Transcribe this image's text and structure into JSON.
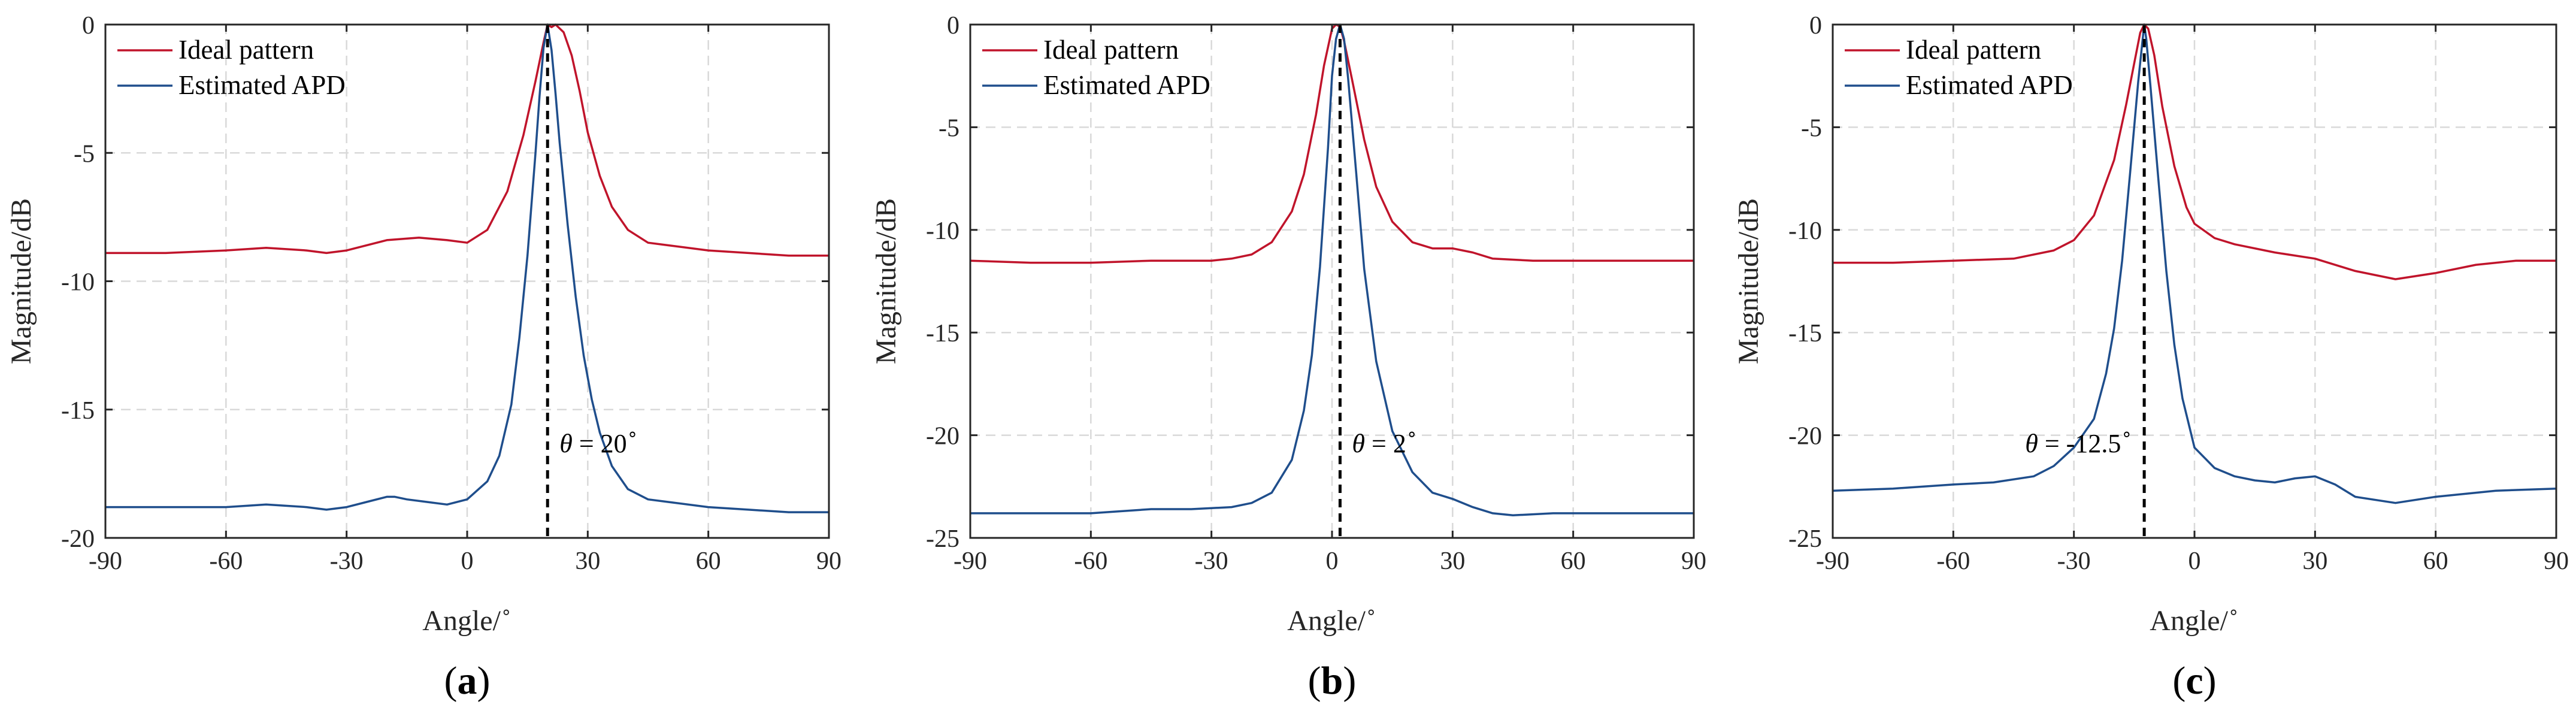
{
  "panels": [
    {
      "panel_label": "(a)",
      "annotation_text": "θ = 20",
      "annotation_sup": "∘"
    },
    {
      "panel_label": "(b)",
      "annotation_text": "θ = 2",
      "annotation_sup": "∘"
    },
    {
      "panel_label": "(c)",
      "annotation_text": "θ = -12.5",
      "annotation_sup": "∘"
    }
  ],
  "colors": {
    "ideal": "#c0142b",
    "estimated": "#1f4e8c"
  },
  "chart_data": [
    {
      "type": "line",
      "title": "",
      "xlabel": "Angle/",
      "xlabel_sup": "∘",
      "ylabel": "Magnitude/dB",
      "xlim": [
        -90,
        90
      ],
      "ylim": [
        -20,
        0
      ],
      "xticks": [
        -90,
        -60,
        -30,
        0,
        30,
        60,
        90
      ],
      "yticks": [
        0,
        -5,
        -10,
        -15,
        -20
      ],
      "grid": true,
      "legend_position": "top-left",
      "marker_x": 20,
      "series": [
        {
          "name": "Ideal pattern",
          "color_key": "ideal",
          "x": [
            -90,
            -75,
            -60,
            -50,
            -40,
            -35,
            -30,
            -20,
            -12,
            -5,
            0,
            5,
            10,
            14,
            17,
            19,
            20,
            21,
            22,
            24,
            26,
            28,
            30,
            33,
            36,
            40,
            45,
            50,
            60,
            70,
            80,
            90
          ],
          "y": [
            -8.9,
            -8.9,
            -8.8,
            -8.7,
            -8.8,
            -8.9,
            -8.8,
            -8.4,
            -8.3,
            -8.4,
            -8.5,
            -8.0,
            -6.5,
            -4.3,
            -2.2,
            -0.7,
            0,
            -0.1,
            0,
            -0.3,
            -1.2,
            -2.6,
            -4.2,
            -5.9,
            -7.1,
            -8.0,
            -8.5,
            -8.6,
            -8.8,
            -8.9,
            -9.0,
            -9.0
          ]
        },
        {
          "name": "Estimated APD",
          "color_key": "estimated",
          "x": [
            -90,
            -75,
            -60,
            -50,
            -40,
            -35,
            -30,
            -25,
            -20,
            -18,
            -15,
            -10,
            -5,
            0,
            5,
            8,
            11,
            13,
            15,
            17,
            18,
            19,
            20,
            21,
            22,
            23,
            25,
            27,
            29,
            31,
            33,
            36,
            40,
            45,
            50,
            60,
            70,
            80,
            90
          ],
          "y": [
            -18.8,
            -18.8,
            -18.8,
            -18.7,
            -18.8,
            -18.9,
            -18.8,
            -18.6,
            -18.4,
            -18.4,
            -18.5,
            -18.6,
            -18.7,
            -18.5,
            -17.8,
            -16.8,
            -14.8,
            -12.2,
            -9.0,
            -5.0,
            -2.8,
            -0.9,
            0,
            -1.0,
            -2.7,
            -4.6,
            -7.8,
            -10.6,
            -12.9,
            -14.6,
            -15.9,
            -17.2,
            -18.1,
            -18.5,
            -18.6,
            -18.8,
            -18.9,
            -19.0,
            -19.0
          ]
        }
      ]
    },
    {
      "type": "line",
      "title": "",
      "xlabel": "Angle/",
      "xlabel_sup": "∘",
      "ylabel": "Magnitude/dB",
      "xlim": [
        -90,
        90
      ],
      "ylim": [
        -25,
        0
      ],
      "xticks": [
        -90,
        -60,
        -30,
        0,
        30,
        60,
        90
      ],
      "yticks": [
        0,
        -5,
        -10,
        -15,
        -20,
        -25
      ],
      "grid": true,
      "legend_position": "top-left",
      "marker_x": 2,
      "series": [
        {
          "name": "Ideal pattern",
          "color_key": "ideal",
          "x": [
            -90,
            -75,
            -60,
            -45,
            -30,
            -25,
            -20,
            -15,
            -10,
            -7,
            -4,
            -2,
            0,
            1,
            2,
            3,
            5,
            8,
            11,
            15,
            20,
            25,
            30,
            35,
            40,
            50,
            60,
            75,
            90
          ],
          "y": [
            -11.5,
            -11.6,
            -11.6,
            -11.5,
            -11.5,
            -11.4,
            -11.2,
            -10.6,
            -9.1,
            -7.3,
            -4.4,
            -2.0,
            -0.2,
            0,
            -0.1,
            -0.8,
            -2.7,
            -5.6,
            -7.9,
            -9.6,
            -10.6,
            -10.9,
            -10.9,
            -11.1,
            -11.4,
            -11.5,
            -11.5,
            -11.5,
            -11.5
          ]
        },
        {
          "name": "Estimated APD",
          "color_key": "estimated",
          "x": [
            -90,
            -75,
            -60,
            -45,
            -35,
            -25,
            -20,
            -15,
            -10,
            -7,
            -5,
            -3,
            -1,
            0,
            1,
            2,
            3,
            4,
            6,
            8,
            11,
            15,
            20,
            25,
            30,
            35,
            40,
            45,
            55,
            65,
            75,
            90
          ],
          "y": [
            -23.8,
            -23.8,
            -23.8,
            -23.6,
            -23.6,
            -23.5,
            -23.3,
            -22.8,
            -21.2,
            -18.8,
            -16.1,
            -11.8,
            -6.0,
            -2.5,
            -0.7,
            0,
            -0.7,
            -2.6,
            -7.2,
            -11.9,
            -16.4,
            -19.8,
            -21.8,
            -22.8,
            -23.1,
            -23.5,
            -23.8,
            -23.9,
            -23.8,
            -23.8,
            -23.8,
            -23.8
          ]
        }
      ]
    },
    {
      "type": "line",
      "title": "",
      "xlabel": "Angle/",
      "xlabel_sup": "∘",
      "ylabel": "Magnitude/dB",
      "xlim": [
        -90,
        90
      ],
      "ylim": [
        -25,
        0
      ],
      "xticks": [
        -90,
        -60,
        -30,
        0,
        30,
        60,
        90
      ],
      "yticks": [
        0,
        -5,
        -10,
        -15,
        -20,
        -25
      ],
      "grid": true,
      "legend_position": "top-left",
      "marker_x": -12.5,
      "series": [
        {
          "name": "Ideal pattern",
          "color_key": "ideal",
          "x": [
            -90,
            -75,
            -60,
            -45,
            -35,
            -30,
            -25,
            -20,
            -17,
            -15,
            -13.5,
            -12.5,
            -11.5,
            -10,
            -8,
            -5,
            -2,
            0,
            5,
            10,
            20,
            30,
            40,
            50,
            60,
            70,
            80,
            90
          ],
          "y": [
            -11.6,
            -11.6,
            -11.5,
            -11.4,
            -11.0,
            -10.5,
            -9.3,
            -6.6,
            -3.9,
            -1.9,
            -0.4,
            0,
            -0.2,
            -1.5,
            -4.0,
            -6.9,
            -8.9,
            -9.7,
            -10.4,
            -10.7,
            -11.1,
            -11.4,
            -12.0,
            -12.4,
            -12.1,
            -11.7,
            -11.5,
            -11.5
          ]
        },
        {
          "name": "Estimated APD",
          "color_key": "estimated",
          "x": [
            -90,
            -75,
            -60,
            -50,
            -40,
            -35,
            -30,
            -25,
            -22,
            -20,
            -18,
            -16,
            -14,
            -13,
            -12.5,
            -12,
            -11,
            -9,
            -7,
            -5,
            -3,
            0,
            5,
            10,
            15,
            20,
            25,
            30,
            35,
            40,
            50,
            60,
            75,
            90
          ],
          "y": [
            -22.7,
            -22.6,
            -22.4,
            -22.3,
            -22.0,
            -21.5,
            -20.6,
            -19.2,
            -17.0,
            -14.8,
            -11.5,
            -7.2,
            -2.8,
            -0.9,
            0,
            -0.7,
            -2.9,
            -7.5,
            -12.0,
            -15.6,
            -18.2,
            -20.6,
            -21.6,
            -22.0,
            -22.2,
            -22.3,
            -22.1,
            -22.0,
            -22.4,
            -23.0,
            -23.3,
            -23.0,
            -22.7,
            -22.6
          ]
        }
      ]
    }
  ]
}
